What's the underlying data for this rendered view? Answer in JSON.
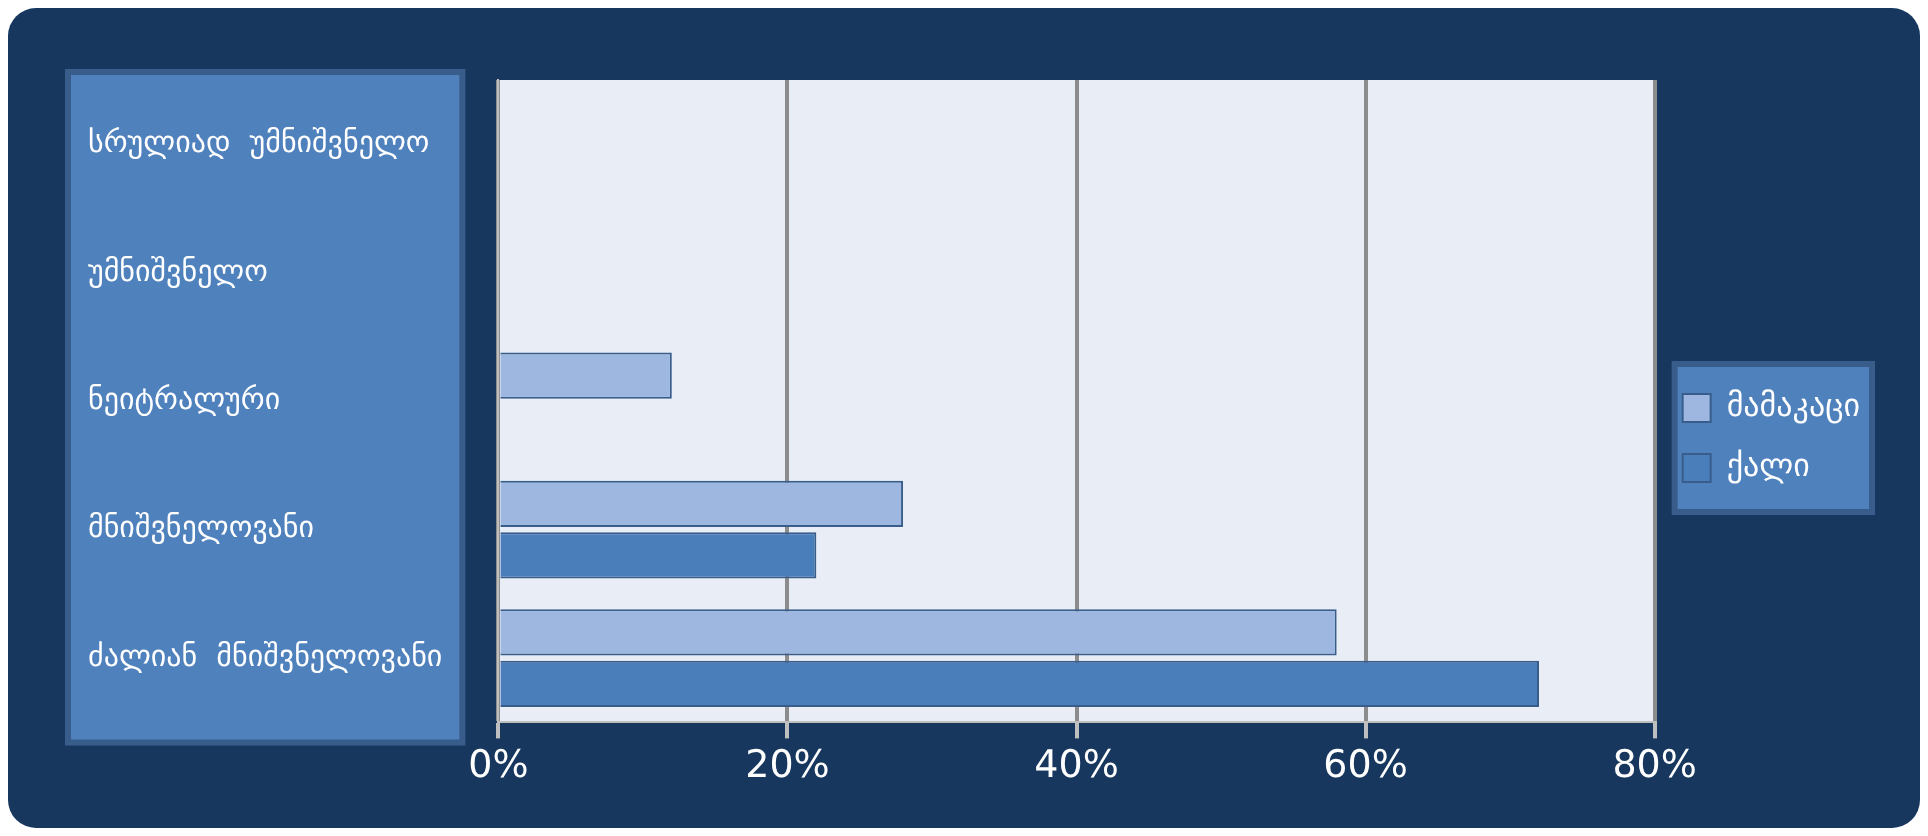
{
  "chart_data": {
    "type": "bar",
    "orientation": "horizontal",
    "categories": [
      "სრულიად  უმნიშვნელო",
      "უმნიშვნელო",
      "ნეიტრალური",
      "მნიშვნელოვანი",
      "ძალიან  მნიშვნელოვანი"
    ],
    "series": [
      {
        "name": "მამაკაცი",
        "color": "#9db7e0",
        "values": [
          null,
          null,
          12,
          28,
          58
        ]
      },
      {
        "name": "ქალი",
        "color": "#4a7ebb",
        "values": [
          null,
          null,
          null,
          22,
          72
        ]
      }
    ],
    "xlim": [
      0,
      80
    ],
    "xticks": [
      {
        "value": 0,
        "label": "0%"
      },
      {
        "value": 20,
        "label": "20%"
      },
      {
        "value": 40,
        "label": "40%"
      },
      {
        "value": 60,
        "label": "60%"
      },
      {
        "value": 80,
        "label": "80%"
      }
    ],
    "grid": "x",
    "legend": "right"
  }
}
